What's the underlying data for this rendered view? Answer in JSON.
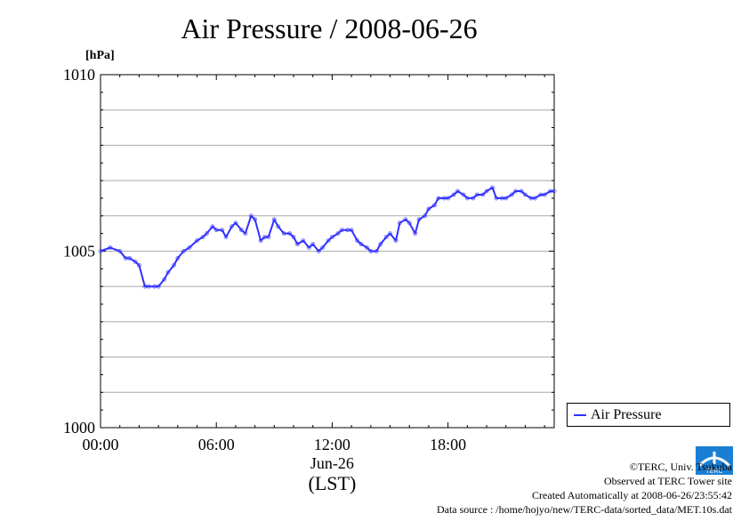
{
  "chart_data": {
    "type": "line",
    "title": "Air Pressure / 2008-06-26",
    "ylabel": "[hPa]",
    "ylim": [
      1000,
      1010
    ],
    "y_ticks": [
      "1000",
      "1005",
      "1010"
    ],
    "xlim": [
      0,
      23.5
    ],
    "x_ticks": [
      "00:00",
      "06:00",
      "12:00",
      "18:00"
    ],
    "x_date_label": "Jun-26",
    "x_timezone_label": "(LST)",
    "grid": true,
    "legend_position": "right",
    "series": [
      {
        "name": "Air Pressure",
        "color": "#3030ff",
        "x": [
          0.0,
          0.5,
          1.0,
          1.3,
          1.5,
          1.8,
          2.0,
          2.3,
          2.5,
          2.8,
          3.0,
          3.3,
          3.5,
          3.8,
          4.0,
          4.3,
          4.6,
          5.0,
          5.3,
          5.5,
          5.8,
          6.0,
          6.3,
          6.5,
          6.8,
          7.0,
          7.3,
          7.5,
          7.8,
          8.0,
          8.3,
          8.5,
          8.7,
          9.0,
          9.2,
          9.5,
          9.8,
          10.0,
          10.2,
          10.5,
          10.8,
          11.0,
          11.3,
          11.5,
          11.8,
          12.0,
          12.3,
          12.5,
          12.8,
          13.0,
          13.3,
          13.5,
          13.8,
          14.0,
          14.3,
          14.5,
          14.8,
          15.0,
          15.3,
          15.5,
          15.8,
          16.0,
          16.3,
          16.5,
          16.8,
          17.0,
          17.3,
          17.5,
          17.8,
          18.0,
          18.3,
          18.5,
          18.8,
          19.0,
          19.3,
          19.5,
          19.8,
          20.0,
          20.3,
          20.5,
          20.8,
          21.0,
          21.3,
          21.5,
          21.8,
          22.0,
          22.3,
          22.5,
          22.8,
          23.0,
          23.3,
          23.5
        ],
        "values": [
          1005.0,
          1005.1,
          1005.0,
          1004.8,
          1004.8,
          1004.7,
          1004.6,
          1004.0,
          1004.0,
          1004.0,
          1004.0,
          1004.2,
          1004.4,
          1004.6,
          1004.8,
          1005.0,
          1005.1,
          1005.3,
          1005.4,
          1005.5,
          1005.7,
          1005.6,
          1005.6,
          1005.4,
          1005.7,
          1005.8,
          1005.6,
          1005.5,
          1006.0,
          1005.9,
          1005.3,
          1005.4,
          1005.4,
          1005.9,
          1005.7,
          1005.5,
          1005.5,
          1005.4,
          1005.2,
          1005.3,
          1005.1,
          1005.2,
          1005.0,
          1005.1,
          1005.3,
          1005.4,
          1005.5,
          1005.6,
          1005.6,
          1005.6,
          1005.3,
          1005.2,
          1005.1,
          1005.0,
          1005.0,
          1005.2,
          1005.4,
          1005.5,
          1005.3,
          1005.8,
          1005.9,
          1005.8,
          1005.5,
          1005.9,
          1006.0,
          1006.2,
          1006.3,
          1006.5,
          1006.5,
          1006.5,
          1006.6,
          1006.7,
          1006.6,
          1006.5,
          1006.5,
          1006.6,
          1006.6,
          1006.7,
          1006.8,
          1006.5,
          1006.5,
          1006.5,
          1006.6,
          1006.7,
          1006.7,
          1006.6,
          1006.5,
          1006.5,
          1006.6,
          1006.6,
          1006.7,
          1006.7
        ]
      }
    ]
  },
  "legend": {
    "label": "Air Pressure"
  },
  "credits": {
    "copyright": "©TERC, Univ. Tsukuba",
    "site": "Observed at TERC Tower site",
    "created": "Created Automatically at 2008-06-26/23:55:42",
    "source": "Data source : /home/hojyo/new/TERC-data/sorted_data/MET.10s.dat"
  },
  "logo": {
    "text": "TERC",
    "color": "#1a7fd4"
  }
}
